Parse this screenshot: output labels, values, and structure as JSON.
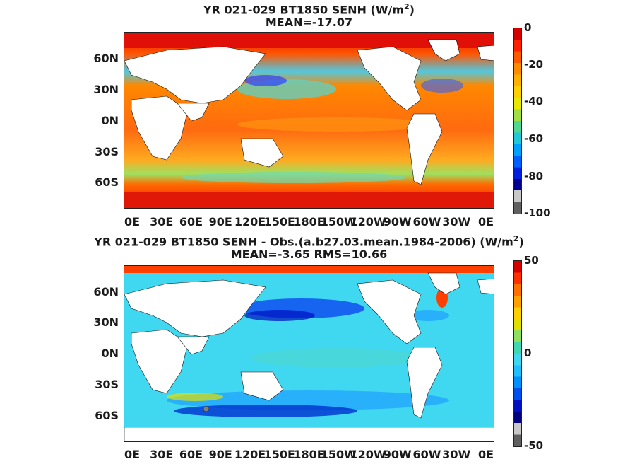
{
  "panels": [
    {
      "title_line1": "YR 021-029 BT1850  SENH (W/m",
      "title_sup": "2",
      "title_close": ")",
      "title_line2": "MEAN=-17.07",
      "colorbar_ticks": [
        "0",
        "-20",
        "-40",
        "-60",
        "-80",
        "-100"
      ],
      "colorbar_colors": [
        "#d40000",
        "#ff2000",
        "#ff5a00",
        "#ff8c00",
        "#ffb000",
        "#ffd000",
        "#e8e800",
        "#a0e040",
        "#50d890",
        "#20c8d8",
        "#00a0ff",
        "#0060ff",
        "#0020e0",
        "#000090",
        "#c8c8c8",
        "#606060"
      ]
    },
    {
      "title_line1": "YR 021-029 BT1850 SENH - Obs.(a.b27.03.mean.1984-2006) (W/m",
      "title_sup": "2",
      "title_close": ")",
      "title_line2": "MEAN=-3.65 RMS=10.66",
      "colorbar_ticks": [
        "50",
        "0",
        "-50"
      ],
      "colorbar_colors": [
        "#d40000",
        "#ff3000",
        "#ff7000",
        "#ffa000",
        "#ffd000",
        "#e0e000",
        "#90e060",
        "#40d8b0",
        "#40d8f0",
        "#20c0ff",
        "#0090ff",
        "#0050f0",
        "#0010c0",
        "#000080",
        "#c8c8c8",
        "#606060"
      ]
    }
  ],
  "lat_labels": [
    "60N",
    "30N",
    "0N",
    "30S",
    "60S"
  ],
  "lon_labels": [
    "0E",
    "30E",
    "60E",
    "90E",
    "120E",
    "150E",
    "180E",
    "150W",
    "120W",
    "90W",
    "60W",
    "30W",
    "0E"
  ],
  "colors": {
    "land": "#ffffff",
    "sea_ice": "#808080"
  }
}
